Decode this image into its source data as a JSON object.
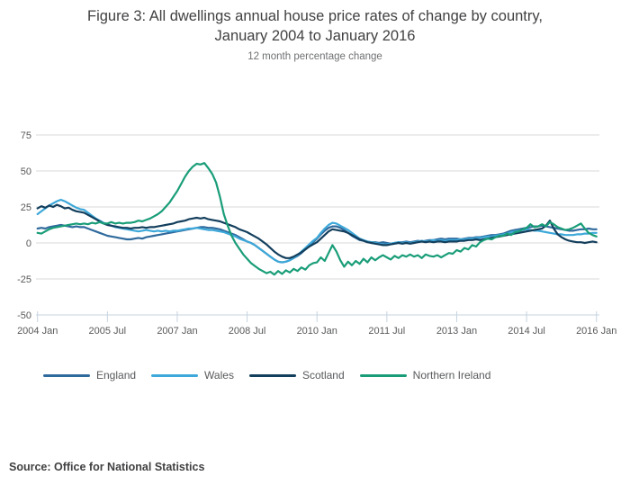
{
  "header": {
    "title": "Figure 3: All dwellings annual house price rates of change by country, January 2004 to January 2016",
    "subtitle": "12 month percentage change"
  },
  "source": {
    "label": "Source: Office for National Statistics"
  },
  "chart_data": {
    "type": "line",
    "title": "Figure 3: All dwellings annual house price rates of change by country, January 2004 to January 2016",
    "subtitle": "12 month percentage change",
    "x_unit": "months from 2004 Jan (monthly data) to 2016 Jan",
    "x_tick_months": [
      0,
      18,
      36,
      54,
      72,
      90,
      108,
      126,
      144
    ],
    "x_tick_labels": [
      "2004 Jan",
      "2005 Jul",
      "2007 Jan",
      "2008 Jul",
      "2010 Jan",
      "2011 Jul",
      "2013 Jan",
      "2014 Jul",
      "2016 Jan"
    ],
    "y_ticks": [
      75,
      50,
      25,
      0,
      -25,
      -50
    ],
    "ylim": [
      -50,
      80
    ],
    "grid": "horizontal",
    "grid_color": "#d8d8d8",
    "axis_color": "#c6d3df",
    "tick_label_color": "#58595b",
    "legend_position": "bottom",
    "series": [
      {
        "name": "England",
        "color": "#2f6a9d",
        "values": [
          10,
          10.5,
          10,
          11,
          11.5,
          12,
          12.5,
          12,
          11.5,
          11,
          11.5,
          11,
          11,
          10,
          9,
          8,
          7,
          6,
          5,
          4.5,
          4,
          3.5,
          3,
          2.5,
          2.5,
          3,
          3.5,
          3,
          4,
          4.5,
          5,
          5.5,
          6,
          6.5,
          7,
          7.5,
          8,
          8.5,
          9,
          9.5,
          10,
          10.5,
          11,
          11,
          10.5,
          10.5,
          10,
          9.5,
          8.5,
          7.5,
          6.5,
          5.5,
          4,
          2.5,
          1,
          0,
          -1.5,
          -3.5,
          -5.5,
          -7.5,
          -9.5,
          -11.5,
          -13,
          -13.5,
          -13,
          -12,
          -10.5,
          -9,
          -7,
          -4.5,
          -2,
          0.5,
          3,
          6,
          8.5,
          10.5,
          11.5,
          11.5,
          10.5,
          9,
          7,
          5,
          3.5,
          2,
          1.5,
          1,
          0.5,
          0.5,
          0,
          0.5,
          0,
          -0.5,
          0,
          0.5,
          0.5,
          1,
          0.5,
          1,
          1.5,
          1,
          1.5,
          2,
          2,
          2.5,
          3,
          2.5,
          3,
          3,
          3,
          2.5,
          3,
          3.5,
          3.5,
          4,
          4,
          4.5,
          5,
          5.5,
          5.5,
          6,
          6.5,
          7.5,
          8.5,
          9,
          9.5,
          10,
          10.5,
          11,
          11.5,
          11.5,
          12,
          11.5,
          11,
          10.5,
          10,
          9.5,
          9,
          8.5,
          8.5,
          9,
          9.5,
          9.5,
          10,
          9.5,
          9.5
        ]
      },
      {
        "name": "Wales",
        "color": "#3da8d9",
        "values": [
          20,
          22,
          24,
          26,
          27.5,
          29,
          30,
          29,
          27.5,
          26,
          24.5,
          23.5,
          23,
          21,
          19,
          17,
          15.5,
          14,
          13,
          12,
          11,
          10.5,
          10,
          9.5,
          9,
          8.5,
          8,
          8.5,
          9,
          8.5,
          8,
          8.5,
          8,
          8.5,
          8,
          8.5,
          8.5,
          9,
          9.5,
          10,
          10,
          10.5,
          10,
          9.5,
          9,
          9,
          8.5,
          8,
          7.5,
          6.5,
          5.5,
          4.5,
          3,
          2,
          1,
          0,
          -1.5,
          -3.5,
          -5.5,
          -7.5,
          -9.5,
          -11.5,
          -13,
          -13.5,
          -13,
          -12,
          -10.5,
          -8.5,
          -6,
          -3.5,
          -1,
          1.5,
          3.5,
          7,
          10,
          12.5,
          14,
          13.5,
          12,
          10.5,
          9,
          7,
          5,
          3,
          2,
          1,
          0.5,
          0,
          -0.5,
          -1,
          -1,
          -0.5,
          0,
          0.5,
          0,
          0.5,
          0,
          0.5,
          1,
          1.5,
          1,
          1.5,
          2,
          1.5,
          2,
          1.5,
          2,
          2,
          2,
          2.5,
          2.5,
          3,
          3,
          3.5,
          3.5,
          4,
          4.5,
          4.5,
          5,
          5.5,
          6,
          6.5,
          7.5,
          8,
          8.5,
          9,
          9.5,
          9,
          8.5,
          8.5,
          8,
          7.5,
          7,
          6.5,
          6,
          6,
          5.5,
          5.5,
          5.5,
          6,
          6,
          6.5,
          6.5,
          7,
          7
        ]
      },
      {
        "name": "Scotland",
        "color": "#133f5d",
        "values": [
          24,
          25.5,
          24.5,
          26,
          25,
          26.5,
          25.5,
          24,
          24.5,
          23,
          22,
          21.5,
          21,
          19.5,
          18,
          16.5,
          15,
          13.5,
          12.5,
          12,
          11.5,
          11,
          10.5,
          10.5,
          10,
          10.5,
          10.5,
          11,
          10.5,
          11,
          11,
          11.5,
          12,
          12.5,
          13,
          13.5,
          14.5,
          15,
          15.5,
          16.5,
          17,
          17.5,
          17,
          17.5,
          16.5,
          16,
          15.5,
          15,
          14,
          13,
          12,
          11,
          9.5,
          8.5,
          7.5,
          6,
          4.5,
          3,
          1,
          -1,
          -3.5,
          -6,
          -8,
          -9.5,
          -10.5,
          -10.5,
          -9.5,
          -8,
          -6.5,
          -4.5,
          -2.5,
          -1,
          0.5,
          3,
          5.5,
          8,
          9.5,
          9,
          8.5,
          8,
          7,
          5.5,
          4,
          2.5,
          1.5,
          0.5,
          0,
          -0.5,
          -1,
          -1.5,
          -1.5,
          -1,
          -0.5,
          0,
          -0.5,
          0,
          -0.5,
          0,
          0.5,
          1,
          0.5,
          1,
          0.5,
          1,
          1,
          0.5,
          1,
          1,
          1,
          1.5,
          1.5,
          2,
          2,
          2.5,
          2,
          2.5,
          3,
          3.5,
          4,
          4.5,
          5,
          5.5,
          6,
          6.5,
          7,
          7.5,
          8,
          8.5,
          9,
          9.5,
          10,
          12,
          15.5,
          10,
          6,
          4,
          2.5,
          1.5,
          1,
          0.5,
          0.5,
          0,
          0.5,
          1,
          0.5
        ]
      },
      {
        "name": "Northern Ireland",
        "color": "#199d78",
        "values": [
          7,
          6.5,
          8,
          9.5,
          10.5,
          11,
          11.5,
          12,
          12.5,
          13,
          13.5,
          13,
          13.5,
          13,
          14,
          13.5,
          14.5,
          13.5,
          13.5,
          14.5,
          13.5,
          14,
          13.5,
          14,
          14,
          14.5,
          15.5,
          15,
          16,
          17,
          18.5,
          20,
          22,
          25,
          28,
          32,
          36,
          41,
          46,
          50,
          53,
          55,
          54.5,
          55.5,
          52,
          48,
          42,
          32,
          20,
          12,
          5,
          0,
          -4,
          -8,
          -11,
          -14,
          -16,
          -18,
          -19.5,
          -21,
          -20,
          -22,
          -19.5,
          -21.5,
          -19,
          -20.5,
          -18,
          -19.5,
          -17,
          -18.5,
          -15.5,
          -14,
          -13.5,
          -10,
          -12.5,
          -7,
          -1.5,
          -6,
          -12,
          -16.5,
          -13,
          -15.5,
          -12.5,
          -14.5,
          -11,
          -13.5,
          -10,
          -12,
          -10,
          -8.5,
          -10,
          -11.5,
          -9,
          -10.5,
          -8.5,
          -9.5,
          -8,
          -9.5,
          -8.5,
          -10.5,
          -8,
          -9,
          -9.5,
          -8.5,
          -10,
          -8.5,
          -7,
          -7.5,
          -5,
          -6,
          -3.5,
          -4.5,
          -1.5,
          -2.5,
          0.5,
          2,
          3,
          2.5,
          4,
          5,
          5,
          6.5,
          5.5,
          7.5,
          8,
          9.5,
          10.5,
          13,
          11,
          11.5,
          13,
          11.5,
          14.5,
          13,
          11,
          10,
          9,
          9.5,
          10.5,
          12,
          13.5,
          10,
          7,
          5.5,
          4.5
        ]
      }
    ]
  }
}
